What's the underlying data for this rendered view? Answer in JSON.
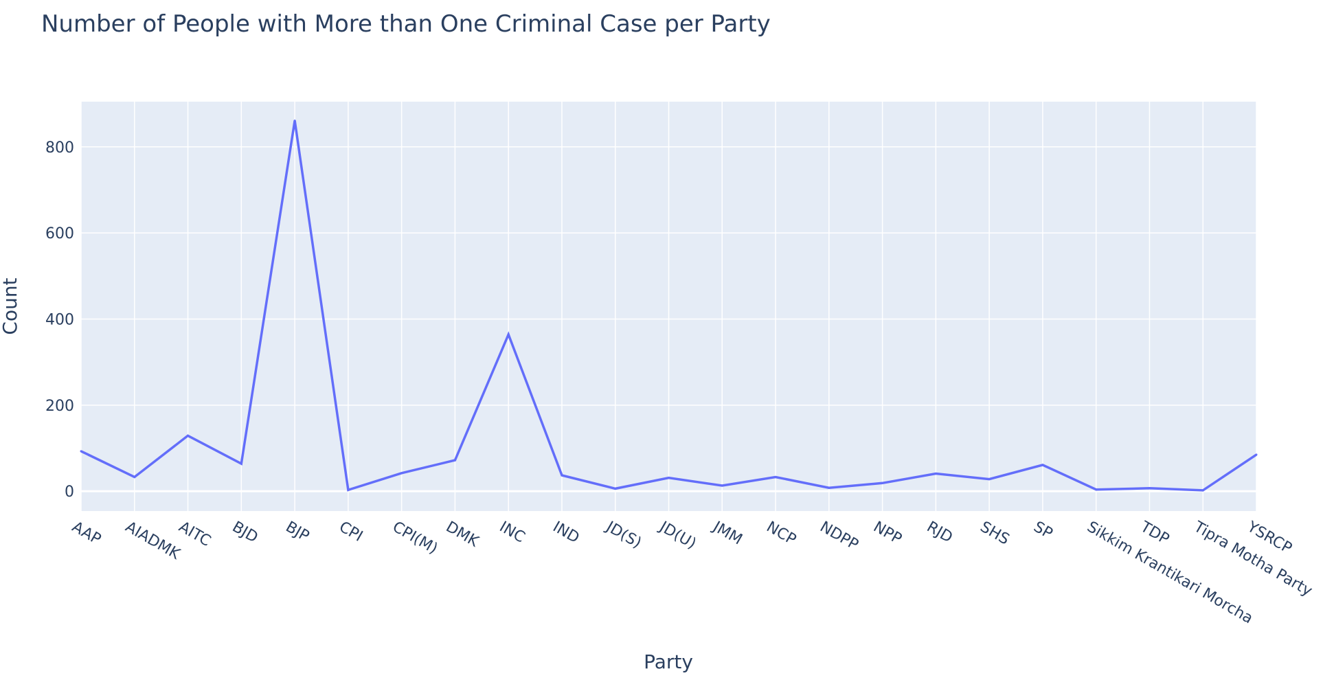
{
  "chart_data": {
    "type": "line",
    "title": "Number of People with More than One Criminal Case per Party",
    "xlabel": "Party",
    "ylabel": "Count",
    "ylim": [
      -46,
      905
    ],
    "yticks": [
      0,
      200,
      400,
      600,
      800
    ],
    "grid": true,
    "legend": "none",
    "line_color": "#636efa",
    "plot_bg": "#e5ecf6",
    "categories": [
      "AAP",
      "AIADMK",
      "AITC",
      "BJD",
      "BJP",
      "CPI",
      "CPI(M)",
      "DMK",
      "INC",
      "IND",
      "JD(S)",
      "JD(U)",
      "JMM",
      "NCP",
      "NDPP",
      "NPP",
      "RJD",
      "SHS",
      "SP",
      "Sikkim Krantikari Morcha",
      "TDP",
      "Tipra Motha Party",
      "YSRCP"
    ],
    "series": [
      {
        "values": [
          93,
          33,
          129,
          64,
          861,
          3,
          42,
          72,
          364,
          37,
          6,
          31,
          13,
          33,
          8,
          19,
          41,
          28,
          61,
          4,
          7,
          2,
          85
        ]
      }
    ]
  }
}
